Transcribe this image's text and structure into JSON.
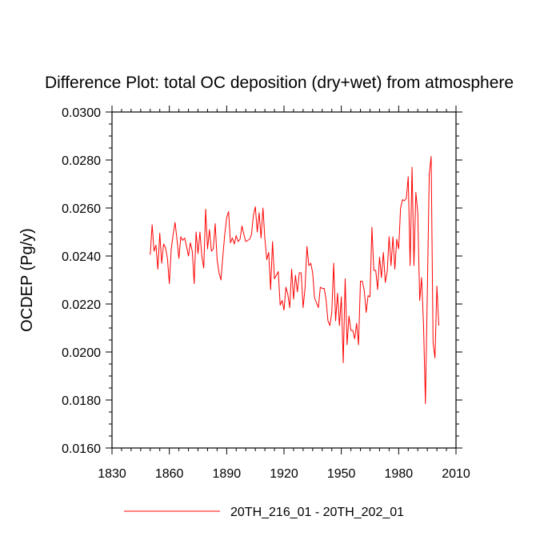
{
  "chart_data": {
    "type": "line",
    "title": "Difference Plot: total OC deposition (dry+wet) from atmosphere",
    "xlabel": "",
    "ylabel": "OCDEP  (Pg/y)",
    "xlim": [
      1830,
      2010
    ],
    "ylim": [
      0.016,
      0.03
    ],
    "x_ticks": [
      1830,
      1860,
      1890,
      1920,
      1950,
      1980,
      2010
    ],
    "x_tick_labels": [
      "1830",
      "1860",
      "1890",
      "1920",
      "1950",
      "1980",
      "2010"
    ],
    "y_ticks": [
      0.016,
      0.018,
      0.02,
      0.022,
      0.024,
      0.026,
      0.028,
      0.03
    ],
    "y_tick_labels": [
      "0.0160",
      "0.0180",
      "0.0200",
      "0.0220",
      "0.0240",
      "0.0260",
      "0.0280",
      "0.0300"
    ],
    "legend_position": "bottom-center",
    "series": [
      {
        "name": "20TH_216_01 - 20TH_202_01",
        "color": "#ff0000",
        "x_start": 1850,
        "x_step": 1,
        "values": [
          0.02405,
          0.0253,
          0.0242,
          0.02445,
          0.02345,
          0.02495,
          0.0237,
          0.0245,
          0.02435,
          0.0239,
          0.02285,
          0.0243,
          0.0249,
          0.0254,
          0.0247,
          0.0239,
          0.0248,
          0.02465,
          0.02475,
          0.0244,
          0.024,
          0.02455,
          0.0242,
          0.02285,
          0.025,
          0.0241,
          0.025,
          0.024,
          0.0235,
          0.02595,
          0.0243,
          0.0251,
          0.0242,
          0.0243,
          0.02535,
          0.02385,
          0.0233,
          0.023,
          0.024,
          0.0249,
          0.0256,
          0.02585,
          0.02455,
          0.02475,
          0.0245,
          0.02485,
          0.0246,
          0.0247,
          0.02525,
          0.0249,
          0.0246,
          0.02465,
          0.0247,
          0.0249,
          0.0257,
          0.02605,
          0.025,
          0.0258,
          0.02475,
          0.026,
          0.0247,
          0.02385,
          0.02415,
          0.0226,
          0.0246,
          0.02305,
          0.0232,
          0.02335,
          0.02195,
          0.02215,
          0.02175,
          0.0227,
          0.0224,
          0.02185,
          0.02345,
          0.0222,
          0.0232,
          0.0225,
          0.0233,
          0.0233,
          0.02185,
          0.02265,
          0.0244,
          0.0236,
          0.0237,
          0.0233,
          0.02225,
          0.02205,
          0.02185,
          0.0227,
          0.02265,
          0.02265,
          0.0222,
          0.0213,
          0.0211,
          0.02165,
          0.0237,
          0.0213,
          0.02245,
          0.0211,
          0.0223,
          0.01955,
          0.02305,
          0.0203,
          0.0215,
          0.0209,
          0.0209,
          0.02055,
          0.0212,
          0.0203,
          0.02295,
          0.02295,
          0.02255,
          0.02165,
          0.02235,
          0.0223,
          0.0252,
          0.0234,
          0.0234,
          0.0226,
          0.02395,
          0.0231,
          0.02415,
          0.0229,
          0.02335,
          0.0248,
          0.0236,
          0.0248,
          0.02345,
          0.0247,
          0.0243,
          0.026,
          0.02635,
          0.0263,
          0.0264,
          0.0273,
          0.0236,
          0.0277,
          0.0236,
          0.02665,
          0.0258,
          0.02215,
          0.0231,
          0.02115,
          0.01785,
          0.0225,
          0.0274,
          0.02815,
          0.0204,
          0.01975,
          0.02275,
          0.0211
        ]
      }
    ]
  }
}
